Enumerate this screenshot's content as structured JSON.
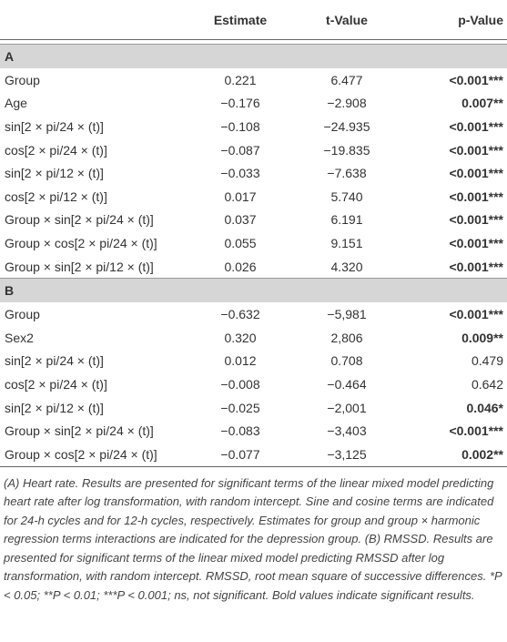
{
  "table": {
    "columns": [
      "Estimate",
      "t-Value",
      "p-Value"
    ],
    "sections": [
      {
        "label": "A",
        "rows": [
          {
            "term": "Group",
            "estimate": "0.221",
            "t": "6.477",
            "p": "<0.001***",
            "p_bold": true
          },
          {
            "term": "Age",
            "estimate": "−0.176",
            "t": "−2.908",
            "p": "0.007**",
            "p_bold": true
          },
          {
            "term": "sin[2 × pi/24 × (t)]",
            "estimate": "−0.108",
            "t": "−24.935",
            "p": "<0.001***",
            "p_bold": true
          },
          {
            "term": "cos[2 × pi/24 × (t)]",
            "estimate": "−0.087",
            "t": "−19.835",
            "p": "<0.001***",
            "p_bold": true
          },
          {
            "term": "sin[2 × pi/12 × (t)]",
            "estimate": "−0.033",
            "t": "−7.638",
            "p": "<0.001***",
            "p_bold": true
          },
          {
            "term": "cos[2 × pi/12 × (t)]",
            "estimate": "0.017",
            "t": "5.740",
            "p": "<0.001***",
            "p_bold": true
          },
          {
            "term": "Group × sin[2 × pi/24 × (t)]",
            "estimate": "0.037",
            "t": "6.191",
            "p": "<0.001***",
            "p_bold": true
          },
          {
            "term": "Group × cos[2 × pi/24 × (t)]",
            "estimate": "0.055",
            "t": "9.151",
            "p": "<0.001***",
            "p_bold": true
          },
          {
            "term": "Group × sin[2 × pi/12 × (t)]",
            "estimate": "0.026",
            "t": "4.320",
            "p": "<0.001***",
            "p_bold": true
          }
        ]
      },
      {
        "label": "B",
        "rows": [
          {
            "term": "Group",
            "estimate": "−0.632",
            "t": "−5,981",
            "p": "<0.001***",
            "p_bold": true
          },
          {
            "term": "Sex2",
            "estimate": "0.320",
            "t": "2,806",
            "p": "0.009**",
            "p_bold": true
          },
          {
            "term": "sin[2 × pi/24 × (t)]",
            "estimate": "0.012",
            "t": "0.708",
            "p": "0.479",
            "p_bold": false
          },
          {
            "term": "cos[2 × pi/24 × (t)]",
            "estimate": "−0.008",
            "t": "−0.464",
            "p": "0.642",
            "p_bold": false
          },
          {
            "term": "sin[2 × pi/12 × (t)]",
            "estimate": "−0.025",
            "t": "−2,001",
            "p": "0.046*",
            "p_bold": true
          },
          {
            "term": "Group × sin[2 × pi/24 × (t)]",
            "estimate": "−0.083",
            "t": "−3,403",
            "p": "<0.001***",
            "p_bold": true
          },
          {
            "term": "Group × cos[2 × pi/24 × (t)]",
            "estimate": "−0.077",
            "t": "−3,125",
            "p": "0.002**",
            "p_bold": true
          }
        ]
      }
    ],
    "footnote": "(A) Heart rate. Results are presented for significant terms of the linear mixed model predicting heart rate after log transformation, with random intercept. Sine and cosine terms are indicated for 24-h cycles and for 12-h cycles, respectively. Estimates for group and group × harmonic regression terms interactions are indicated for the depression group. (B) RMSSD. Results are presented for significant terms of the linear mixed model predicting RMSSD after log transformation, with random intercept. RMSSD, root mean square of successive differences. *P < 0.05; **P < 0.01; ***P < 0.001; ns, not significant. Bold values indicate significant results."
  }
}
